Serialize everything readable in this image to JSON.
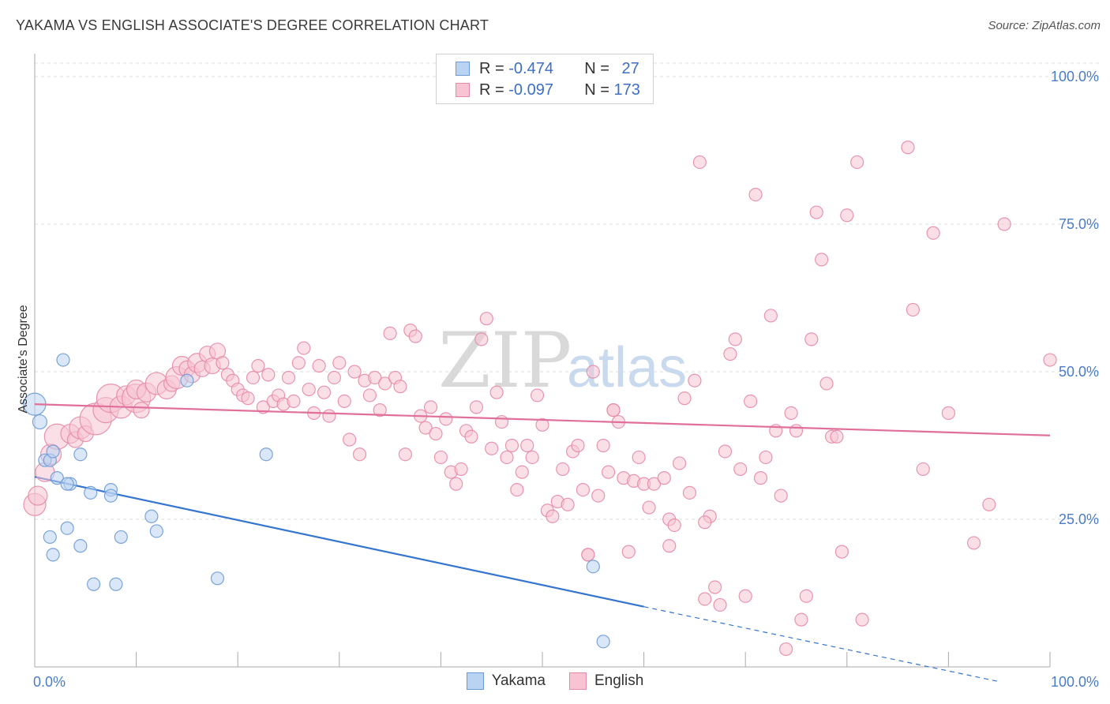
{
  "title": "YAKAMA VS ENGLISH ASSOCIATE'S DEGREE CORRELATION CHART",
  "source": "Source: ZipAtlas.com",
  "watermark": {
    "zip": "ZIP",
    "atlas": "atlas"
  },
  "legend_top": [
    {
      "r_label": "R =",
      "r_value": "-0.474",
      "n_label": "N =",
      "n_value": "27",
      "fill": "#b9d3f3",
      "stroke": "#6d9ad6"
    },
    {
      "r_label": "R =",
      "r_value": "-0.097",
      "n_label": "N =",
      "n_value": "173",
      "fill": "#f8c4d3",
      "stroke": "#e58aa7"
    }
  ],
  "legend_bottom": [
    {
      "label": "Yakama",
      "fill": "#b9d3f3",
      "stroke": "#6d9ad6"
    },
    {
      "label": "English",
      "fill": "#f8c4d3",
      "stroke": "#e58aa7"
    }
  ],
  "chart_data": {
    "type": "scatter",
    "title": "YAKAMA VS ENGLISH ASSOCIATE'S DEGREE CORRELATION CHART",
    "xlabel": "",
    "ylabel": "Associate's Degree",
    "xlim": [
      0,
      100
    ],
    "ylim": [
      0,
      100
    ],
    "x_ticks": [
      "0.0%",
      "100.0%"
    ],
    "y_ticks": [
      {
        "value": 25,
        "label": "25.0%"
      },
      {
        "value": 50,
        "label": "50.0%"
      },
      {
        "value": 75,
        "label": "75.0%"
      },
      {
        "value": 100,
        "label": "100.0%"
      }
    ],
    "grid": true,
    "legend": "top-center",
    "series": [
      {
        "name": "Yakama",
        "color": "#6d9ad6",
        "fill": "#b9d3f3",
        "line_color": "#3574d0",
        "trend": {
          "x0": 0,
          "y0": 32.2,
          "x1": 60,
          "y1": 10.2,
          "dash_to_x": 95,
          "dash_to_y": -2.5
        },
        "points": [
          [
            0,
            44.5,
            14
          ],
          [
            0.5,
            41.5,
            9
          ],
          [
            1,
            35,
            8
          ],
          [
            1.5,
            35,
            8
          ],
          [
            1.8,
            36.5,
            8
          ],
          [
            2.8,
            52,
            8
          ],
          [
            2.2,
            32,
            8
          ],
          [
            3.5,
            31,
            8
          ],
          [
            3.2,
            31,
            8
          ],
          [
            4.5,
            36,
            8
          ],
          [
            1.5,
            22,
            8
          ],
          [
            1.8,
            19,
            8
          ],
          [
            3.2,
            23.5,
            8
          ],
          [
            4.5,
            20.5,
            8
          ],
          [
            5.5,
            29.5,
            8
          ],
          [
            7.5,
            30,
            8
          ],
          [
            7.5,
            29,
            8
          ],
          [
            5.8,
            14,
            8
          ],
          [
            8,
            14,
            8
          ],
          [
            8.5,
            22,
            8
          ],
          [
            11.5,
            25.5,
            8
          ],
          [
            12,
            23,
            8
          ],
          [
            15,
            48.5,
            8
          ],
          [
            18,
            15,
            8
          ],
          [
            22.8,
            36,
            8
          ],
          [
            55,
            17,
            8
          ],
          [
            56,
            4.3,
            8
          ]
        ]
      },
      {
        "name": "English",
        "color": "#e58aa7",
        "fill": "#f8c4d3",
        "line_color": "#e0709a",
        "trend": {
          "x0": 0,
          "y0": 44.5,
          "x1": 100,
          "y1": 39.2
        },
        "points": [
          [
            0,
            27.5,
            14
          ],
          [
            0.3,
            29,
            12
          ],
          [
            1,
            33,
            12
          ],
          [
            1.6,
            36,
            13
          ],
          [
            2.2,
            39,
            16
          ],
          [
            3.5,
            39.5,
            12
          ],
          [
            4,
            38.5,
            10
          ],
          [
            4.5,
            40.5,
            14
          ],
          [
            5,
            39.5,
            10
          ],
          [
            6,
            42,
            20
          ],
          [
            7,
            43.5,
            16
          ],
          [
            7.5,
            45.5,
            18
          ],
          [
            8.5,
            44,
            14
          ],
          [
            9,
            46,
            12
          ],
          [
            10,
            45.5,
            18
          ],
          [
            10,
            47,
            12
          ],
          [
            10.5,
            43.5,
            10
          ],
          [
            11,
            46.5,
            12
          ],
          [
            12,
            48,
            14
          ],
          [
            13,
            47,
            12
          ],
          [
            13.5,
            48,
            10
          ],
          [
            14,
            49,
            14
          ],
          [
            14.5,
            51,
            12
          ],
          [
            15,
            50.5,
            10
          ],
          [
            15.5,
            49.5,
            10
          ],
          [
            16,
            51.5,
            12
          ],
          [
            16.5,
            50.5,
            10
          ],
          [
            17,
            53,
            10
          ],
          [
            17.5,
            51,
            10
          ],
          [
            18,
            53.5,
            10
          ],
          [
            18.5,
            51.5,
            8
          ],
          [
            19,
            49.5,
            8
          ],
          [
            19.5,
            48.5,
            8
          ],
          [
            20,
            47,
            8
          ],
          [
            20.5,
            46,
            8
          ],
          [
            21,
            45.5,
            8
          ],
          [
            21.5,
            49,
            8
          ],
          [
            22,
            51,
            8
          ],
          [
            22.5,
            44,
            8
          ],
          [
            23,
            49.5,
            8
          ],
          [
            23.5,
            45,
            8
          ],
          [
            24,
            46,
            8
          ],
          [
            24.5,
            44.5,
            8
          ],
          [
            25,
            49,
            8
          ],
          [
            25.5,
            45,
            8
          ],
          [
            26,
            51.5,
            8
          ],
          [
            26.5,
            54,
            8
          ],
          [
            27,
            47,
            8
          ],
          [
            27.5,
            43,
            8
          ],
          [
            28,
            51,
            8
          ],
          [
            28.5,
            46.5,
            8
          ],
          [
            29,
            42.5,
            8
          ],
          [
            29.5,
            49,
            8
          ],
          [
            30,
            51.5,
            8
          ],
          [
            30.5,
            45,
            8
          ],
          [
            31,
            38.5,
            8
          ],
          [
            31.5,
            50,
            8
          ],
          [
            32,
            36,
            8
          ],
          [
            32.5,
            48.5,
            8
          ],
          [
            33,
            46,
            8
          ],
          [
            33.5,
            49,
            8
          ],
          [
            34,
            43.5,
            8
          ],
          [
            34.5,
            48,
            8
          ],
          [
            35,
            56.5,
            8
          ],
          [
            35.5,
            49,
            8
          ],
          [
            36,
            47.5,
            8
          ],
          [
            36.5,
            36,
            8
          ],
          [
            37,
            57,
            8
          ],
          [
            37.5,
            56,
            8
          ],
          [
            38,
            42.5,
            8
          ],
          [
            38.5,
            40.5,
            8
          ],
          [
            39,
            44,
            8
          ],
          [
            39.5,
            39.5,
            8
          ],
          [
            40,
            35.5,
            8
          ],
          [
            40.5,
            42,
            8
          ],
          [
            41,
            33,
            8
          ],
          [
            41.5,
            31,
            8
          ],
          [
            42,
            33.5,
            8
          ],
          [
            42.5,
            40,
            8
          ],
          [
            43,
            39,
            8
          ],
          [
            43.5,
            44,
            8
          ],
          [
            44,
            55.5,
            8
          ],
          [
            44.5,
            59,
            8
          ],
          [
            45,
            37,
            8
          ],
          [
            45.5,
            46.5,
            8
          ],
          [
            46,
            41.5,
            8
          ],
          [
            46.5,
            35.5,
            8
          ],
          [
            47,
            37.5,
            8
          ],
          [
            47.5,
            30,
            8
          ],
          [
            48,
            33,
            8
          ],
          [
            48.5,
            37.5,
            8
          ],
          [
            49,
            35.5,
            8
          ],
          [
            49.5,
            46,
            8
          ],
          [
            50,
            41,
            8
          ],
          [
            50.5,
            26.5,
            8
          ],
          [
            51,
            25.5,
            8
          ],
          [
            51.5,
            28,
            8
          ],
          [
            52,
            33.5,
            8
          ],
          [
            52.5,
            27.5,
            8
          ],
          [
            53,
            36.5,
            8
          ],
          [
            53.5,
            37.5,
            8
          ],
          [
            54,
            30,
            8
          ],
          [
            54.5,
            19,
            8
          ],
          [
            55,
            50,
            8
          ],
          [
            55.5,
            29,
            8
          ],
          [
            56,
            37.5,
            8
          ],
          [
            56.5,
            33,
            8
          ],
          [
            57,
            43.5,
            8
          ],
          [
            57.5,
            41.5,
            8
          ],
          [
            58,
            32,
            8
          ],
          [
            58.5,
            19.5,
            8
          ],
          [
            59,
            31.5,
            8
          ],
          [
            59.5,
            35.5,
            8
          ],
          [
            60,
            31,
            8
          ],
          [
            60.5,
            27,
            8
          ],
          [
            61,
            31,
            8
          ],
          [
            62,
            32,
            8
          ],
          [
            62.5,
            25,
            8
          ],
          [
            63,
            24,
            8
          ],
          [
            63.5,
            34.5,
            8
          ],
          [
            64,
            45.5,
            8
          ],
          [
            64.5,
            29.5,
            8
          ],
          [
            65,
            48.5,
            8
          ],
          [
            65.5,
            85.5,
            8
          ],
          [
            66,
            11.5,
            8
          ],
          [
            66.5,
            25.5,
            8
          ],
          [
            67,
            13.5,
            8
          ],
          [
            67.5,
            10.5,
            8
          ],
          [
            68,
            36.5,
            8
          ],
          [
            68.5,
            53,
            8
          ],
          [
            69,
            55.5,
            8
          ],
          [
            69.5,
            33.5,
            8
          ],
          [
            70,
            12,
            8
          ],
          [
            70.5,
            45,
            8
          ],
          [
            71,
            80,
            8
          ],
          [
            71.5,
            32,
            8
          ],
          [
            72,
            35.5,
            8
          ],
          [
            72.5,
            59.5,
            8
          ],
          [
            73,
            40,
            8
          ],
          [
            73.5,
            29,
            8
          ],
          [
            74,
            3,
            8
          ],
          [
            74.5,
            43,
            8
          ],
          [
            75,
            40,
            8
          ],
          [
            75.5,
            8,
            8
          ],
          [
            76,
            12,
            8
          ],
          [
            76.5,
            55.5,
            8
          ],
          [
            77,
            77,
            8
          ],
          [
            77.5,
            69,
            8
          ],
          [
            78,
            48,
            8
          ],
          [
            78.5,
            39,
            8
          ],
          [
            79,
            39,
            8
          ],
          [
            79.5,
            19.5,
            8
          ],
          [
            80,
            76.5,
            8
          ],
          [
            81,
            85.5,
            8
          ],
          [
            81.5,
            8,
            8
          ],
          [
            86,
            88,
            8
          ],
          [
            86.5,
            60.5,
            8
          ],
          [
            87.5,
            33.5,
            8
          ],
          [
            88.5,
            73.5,
            8
          ],
          [
            90,
            43,
            8
          ],
          [
            92.5,
            21,
            8
          ],
          [
            94,
            27.5,
            8
          ],
          [
            95.5,
            75,
            8
          ],
          [
            100,
            52,
            8
          ],
          [
            62.5,
            20.5,
            8
          ],
          [
            54.5,
            19,
            8
          ],
          [
            57,
            43.5,
            8
          ],
          [
            66,
            24.5,
            8
          ]
        ]
      }
    ]
  }
}
